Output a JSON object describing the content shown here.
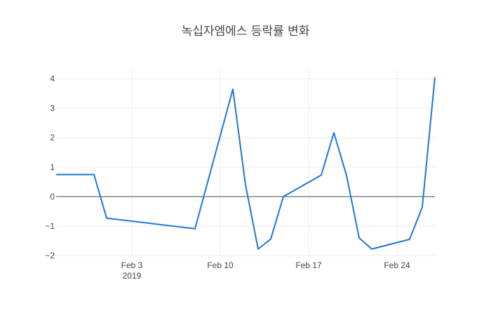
{
  "chart_data": {
    "type": "line",
    "title": "녹십자엠에스 등락률 변화",
    "xlabel": "",
    "ylabel": "",
    "x_axis": {
      "type": "date",
      "range": [
        "2019-01-28",
        "2019-02-27"
      ],
      "ticks": [
        {
          "date": "2019-02-03",
          "label": "Feb 3",
          "sublabel": "2019"
        },
        {
          "date": "2019-02-10",
          "label": "Feb 10",
          "sublabel": ""
        },
        {
          "date": "2019-02-17",
          "label": "Feb 17",
          "sublabel": ""
        },
        {
          "date": "2019-02-24",
          "label": "Feb 24",
          "sublabel": ""
        }
      ]
    },
    "y_axis": {
      "range": [
        -2,
        4.3
      ],
      "ticks": [
        {
          "value": -2,
          "label": "−2"
        },
        {
          "value": -1,
          "label": "−1"
        },
        {
          "value": 0,
          "label": "0"
        },
        {
          "value": 1,
          "label": "1"
        },
        {
          "value": 2,
          "label": "2"
        },
        {
          "value": 3,
          "label": "3"
        },
        {
          "value": 4,
          "label": "4"
        }
      ]
    },
    "grid": true,
    "series": [
      {
        "color": "#1f77d4",
        "points": [
          {
            "x": "2019-01-28",
            "y": 0.75
          },
          {
            "x": "2019-01-31",
            "y": 0.75
          },
          {
            "x": "2019-02-01",
            "y": -0.73
          },
          {
            "x": "2019-02-08",
            "y": -1.09
          },
          {
            "x": "2019-02-11",
            "y": 3.65
          },
          {
            "x": "2019-02-12",
            "y": 0.4
          },
          {
            "x": "2019-02-13",
            "y": -1.78
          },
          {
            "x": "2019-02-14",
            "y": -1.44
          },
          {
            "x": "2019-02-15",
            "y": 0.0
          },
          {
            "x": "2019-02-18",
            "y": 0.73
          },
          {
            "x": "2019-02-19",
            "y": 2.17
          },
          {
            "x": "2019-02-20",
            "y": 0.72
          },
          {
            "x": "2019-02-21",
            "y": -1.4
          },
          {
            "x": "2019-02-22",
            "y": -1.78
          },
          {
            "x": "2019-02-25",
            "y": -1.45
          },
          {
            "x": "2019-02-26",
            "y": -0.36
          },
          {
            "x": "2019-02-27",
            "y": 4.05
          }
        ]
      }
    ]
  }
}
